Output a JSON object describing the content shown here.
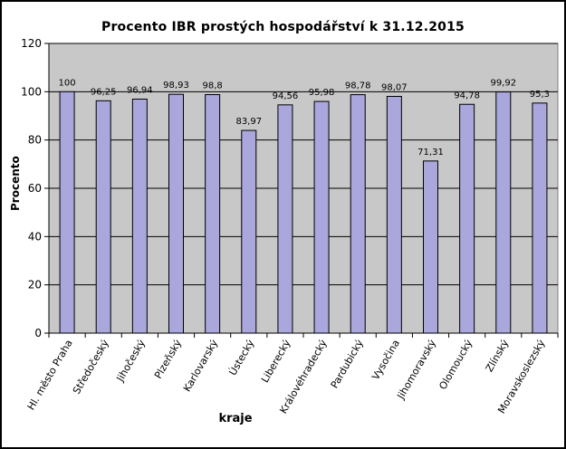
{
  "chart_data": {
    "type": "bar",
    "title": "Procento IBR prostých hospodářství k 31.12.2015",
    "xlabel": "kraje",
    "ylabel": "Procento",
    "ylim": [
      0,
      120
    ],
    "y_ticks": [
      0,
      20,
      40,
      60,
      80,
      100,
      120
    ],
    "grid": true,
    "categories": [
      "Hl. město Praha",
      "Středočeský",
      "Jihočeský",
      "Plzeňský",
      "Karlovarský",
      "Ústecký",
      "Liberecký",
      "Královéhradecký",
      "Pardubický",
      "Vysočina",
      "Jihomoravský",
      "Olomoucký",
      "Zlínský",
      "Moravskoslezský"
    ],
    "values": [
      100,
      96.25,
      96.94,
      98.93,
      98.8,
      83.97,
      94.56,
      95.98,
      98.78,
      98.07,
      71.31,
      94.78,
      99.92,
      95.3
    ],
    "value_labels": [
      "100",
      "96,25",
      "96,94",
      "98,93",
      "98,8",
      "83,97",
      "94,56",
      "95,98",
      "98,78",
      "98,07",
      "71,31",
      "94,78",
      "99,92",
      "95,3"
    ],
    "colors": {
      "bar_fill": "#A9A7DB",
      "bar_stroke": "#000000",
      "plot_background": "#C8C8C8",
      "gridline": "#000000"
    }
  }
}
